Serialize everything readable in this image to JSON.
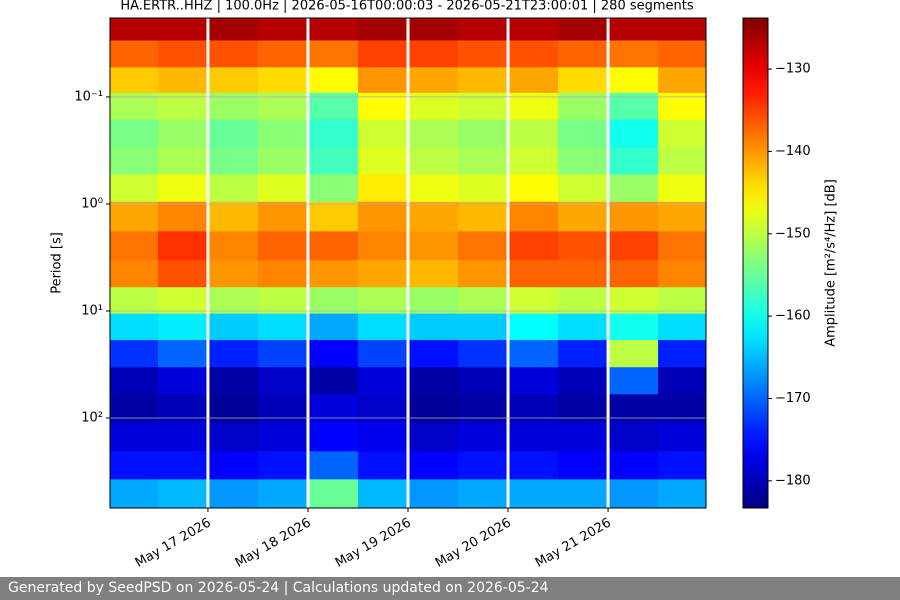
{
  "chart_data": {
    "type": "heatmap",
    "title": "HA.ERTR..HHZ | 100.0Hz | 2026-05-16T00:00:03 - 2026-05-21T23:00:01 | 280 segments",
    "ylabel": "Period [s]",
    "colorbar_label": "Amplitude [m²/s⁴/Hz] [dB]",
    "colormap": "jet",
    "yscale": "log",
    "y_inverted": true,
    "grid": true,
    "xlim": [
      "2026-05-16T00:30",
      "2026-05-21T23:30"
    ],
    "xticks": [
      {
        "value": "2026-05-17T00:00",
        "label": "May 17 2026"
      },
      {
        "value": "2026-05-18T00:00",
        "label": "May 18 2026"
      },
      {
        "value": "2026-05-19T00:00",
        "label": "May 19 2026"
      },
      {
        "value": "2026-05-20T00:00",
        "label": "May 20 2026"
      },
      {
        "value": "2026-05-21T00:00",
        "label": "May 21 2026"
      }
    ],
    "ylim": [
      0.0183,
      693
    ],
    "yticks": [
      {
        "value": 0.1,
        "label": "10⁻¹"
      },
      {
        "value": 1,
        "label": "10⁰"
      },
      {
        "value": 10,
        "label": "10¹"
      },
      {
        "value": 100,
        "label": "10²"
      }
    ],
    "clim": [
      -183.3,
      -123.8
    ],
    "cticks": [
      {
        "value": -130,
        "label": "−130"
      },
      {
        "value": -140,
        "label": "−140"
      },
      {
        "value": -150,
        "label": "−150"
      },
      {
        "value": -160,
        "label": "−160"
      },
      {
        "value": -170,
        "label": "−170"
      },
      {
        "value": -180,
        "label": "−180"
      }
    ],
    "x": [
      "2026-05-16T06:00",
      "2026-05-16T18:00",
      "2026-05-17T06:00",
      "2026-05-17T18:00",
      "2026-05-18T06:00",
      "2026-05-18T18:00",
      "2026-05-19T06:00",
      "2026-05-19T18:00",
      "2026-05-20T06:00",
      "2026-05-20T18:00",
      "2026-05-21T06:00",
      "2026-05-21T18:00"
    ],
    "y": [
      0.022,
      0.04,
      0.07,
      0.12,
      0.22,
      0.4,
      0.7,
      1.3,
      2.5,
      4.5,
      8,
      14,
      25,
      45,
      80,
      150,
      280,
      500
    ],
    "z": [
      [
        -127,
        -127,
        -126,
        -127,
        -127,
        -126,
        -126,
        -127,
        -127,
        -126,
        -127,
        -127
      ],
      [
        -137,
        -136,
        -136,
        -137,
        -138,
        -135,
        -135,
        -136,
        -136,
        -137,
        -138,
        -137
      ],
      [
        -143,
        -142,
        -143,
        -144,
        -146,
        -140,
        -141,
        -142,
        -141,
        -144,
        -146,
        -141
      ],
      [
        -151,
        -150,
        -152,
        -151,
        -156,
        -146,
        -148,
        -149,
        -147,
        -152,
        -156,
        -146
      ],
      [
        -154,
        -152,
        -155,
        -153,
        -158,
        -149,
        -151,
        -152,
        -150,
        -154,
        -160,
        -149
      ],
      [
        -153,
        -151,
        -154,
        -152,
        -157,
        -148,
        -150,
        -151,
        -149,
        -153,
        -158,
        -150
      ],
      [
        -149,
        -147,
        -150,
        -148,
        -153,
        -145,
        -147,
        -148,
        -146,
        -149,
        -152,
        -147
      ],
      [
        -141,
        -139,
        -142,
        -140,
        -143,
        -140,
        -141,
        -142,
        -139,
        -141,
        -140,
        -141
      ],
      [
        -138,
        -134,
        -139,
        -137,
        -137,
        -139,
        -140,
        -138,
        -135,
        -136,
        -135,
        -138
      ],
      [
        -139,
        -136,
        -140,
        -139,
        -140,
        -141,
        -142,
        -140,
        -137,
        -137,
        -137,
        -139
      ],
      [
        -150,
        -149,
        -151,
        -150,
        -152,
        -151,
        -152,
        -151,
        -149,
        -150,
        -149,
        -150
      ],
      [
        -163,
        -162,
        -164,
        -163,
        -166,
        -163,
        -164,
        -164,
        -161,
        -163,
        -160,
        -163
      ],
      [
        -173,
        -170,
        -174,
        -172,
        -176,
        -172,
        -175,
        -173,
        -170,
        -174,
        -150,
        -174
      ],
      [
        -180,
        -178,
        -181,
        -179,
        -181,
        -178,
        -181,
        -180,
        -178,
        -180,
        -170,
        -180
      ],
      [
        -181,
        -180,
        -182,
        -180,
        -178,
        -179,
        -182,
        -181,
        -180,
        -181,
        -181,
        -181
      ],
      [
        -178,
        -178,
        -179,
        -178,
        -176,
        -177,
        -179,
        -178,
        -178,
        -178,
        -179,
        -178
      ],
      [
        -175,
        -175,
        -176,
        -175,
        -170,
        -175,
        -176,
        -175,
        -175,
        -176,
        -176,
        -175
      ],
      [
        -166,
        -165,
        -167,
        -166,
        -155,
        -165,
        -167,
        -166,
        -166,
        -166,
        -167,
        -166
      ]
    ]
  },
  "footer": {
    "text": "Generated by SeedPSD on 2026-05-24 | Calculations updated on 2026-05-24"
  }
}
